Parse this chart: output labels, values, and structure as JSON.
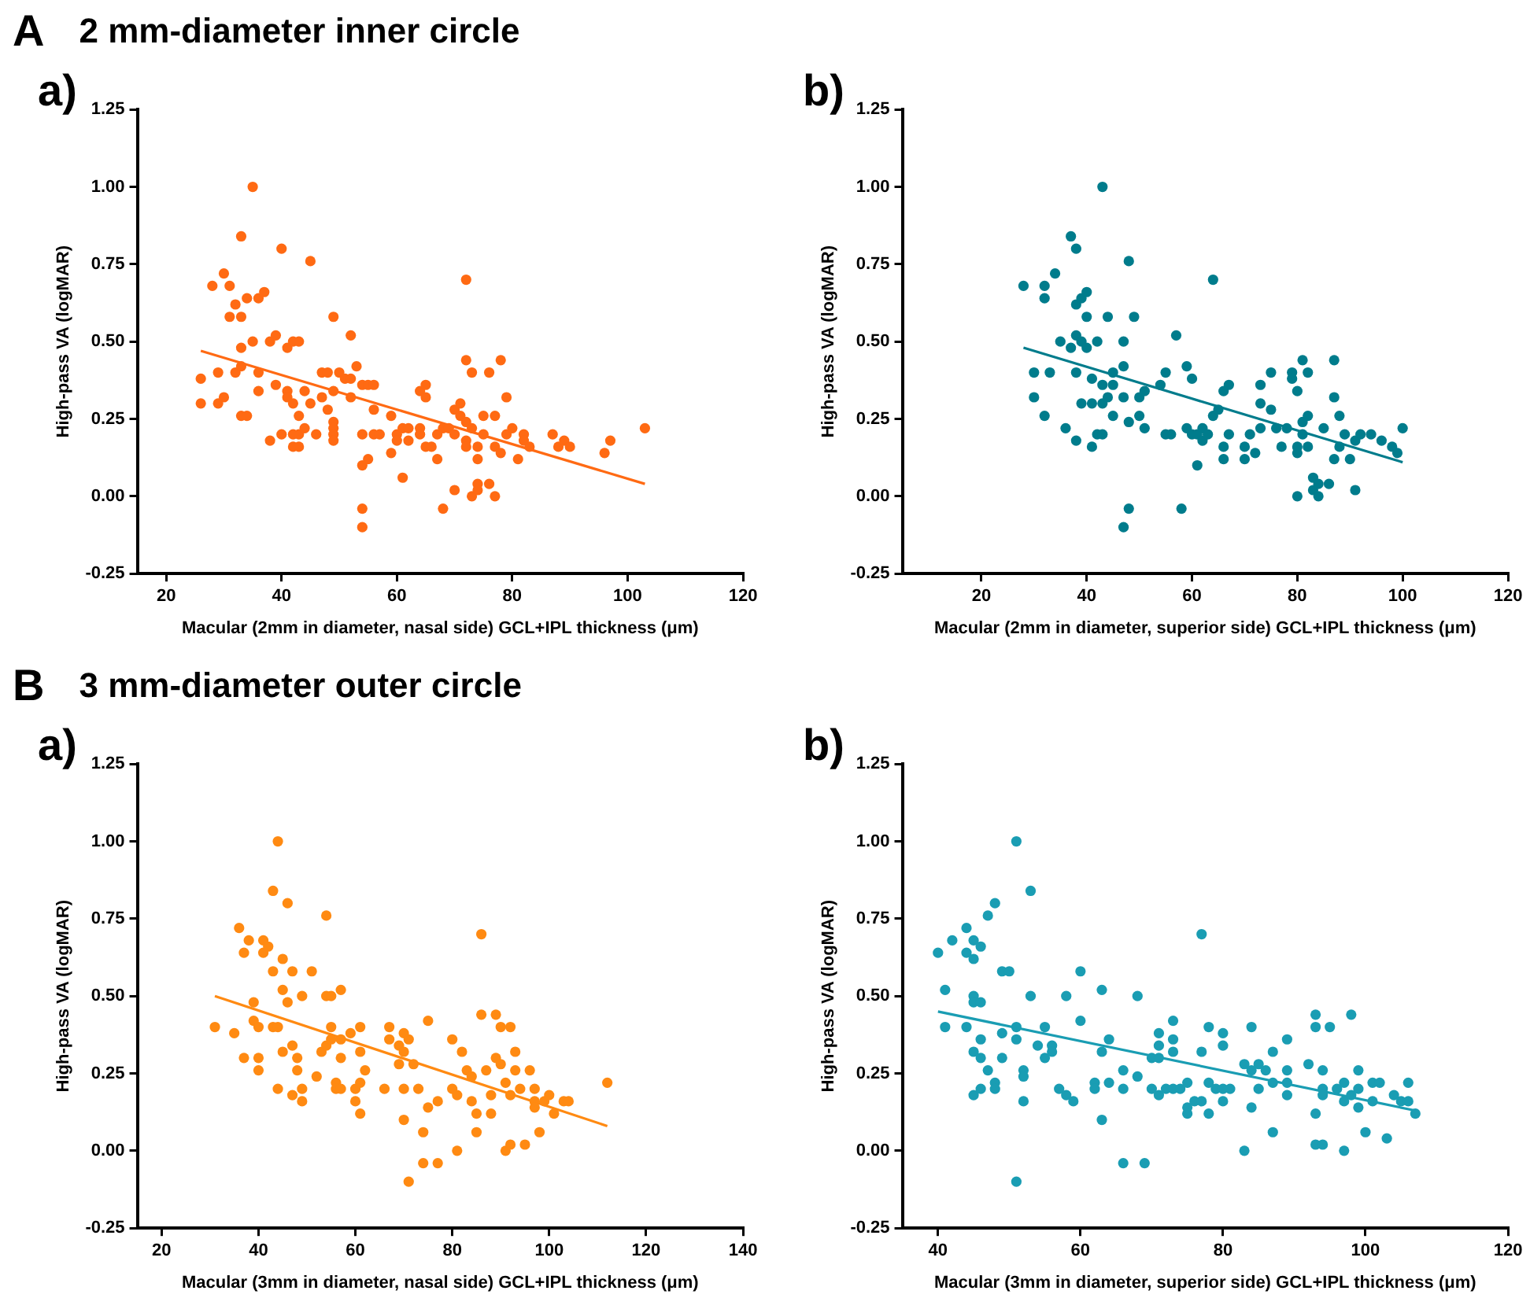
{
  "chart_data": [
    {
      "type": "scatter",
      "title": "a)",
      "annotations": [
        "A",
        "2 mm-diameter inner circle"
      ],
      "xlabel": "Macular (2mm in diameter, nasal side) GCL+IPL thickness (μm)",
      "ylabel": "High-pass VA (logMAR)",
      "xlim": [
        15,
        120
      ],
      "xticks": [
        20,
        40,
        60,
        80,
        100,
        120
      ],
      "ylim": [
        -0.25,
        1.25
      ],
      "yticks": [
        -0.25,
        {
          "value": 0,
          "label": "0.00"
        },
        0.25,
        {
          "value": 0.5,
          "label": "0.50"
        },
        0.75,
        {
          "value": 1,
          "label": "1.00"
        },
        1.25
      ],
      "grid": false,
      "legend": false,
      "marker": "circle",
      "series": [
        {
          "type": "scatter",
          "color": "#ff6a13",
          "x": [
            26,
            26,
            28,
            29,
            29,
            30,
            30,
            31,
            31,
            32,
            32,
            33,
            33,
            33,
            33,
            33,
            34,
            34,
            35,
            35,
            36,
            36,
            36,
            37,
            38,
            38,
            39,
            39,
            40,
            40,
            41,
            41,
            41,
            42,
            42,
            42,
            42,
            43,
            43,
            43,
            43,
            44,
            44,
            45,
            45,
            46,
            47,
            47,
            48,
            48,
            49,
            49,
            49,
            49,
            49,
            49,
            50,
            51,
            52,
            52,
            52,
            53,
            54,
            54,
            54,
            54,
            54,
            55,
            55,
            56,
            56,
            56,
            57,
            59,
            59,
            60,
            60,
            61,
            61,
            62,
            62,
            64,
            64,
            64,
            65,
            65,
            65,
            66,
            67,
            67,
            68,
            68,
            69,
            70,
            70,
            70,
            71,
            71,
            72,
            72,
            72,
            72,
            72,
            73,
            73,
            73,
            74,
            74,
            74,
            74,
            75,
            75,
            76,
            76,
            77,
            77,
            77,
            78,
            78,
            79,
            79,
            80,
            81,
            82,
            82,
            83,
            87,
            88,
            89,
            90,
            96,
            97,
            103
          ],
          "values": [
            0.38,
            0.3,
            0.68,
            0.4,
            0.3,
            0.32,
            0.72,
            0.68,
            0.58,
            0.62,
            0.4,
            0.84,
            0.58,
            0.48,
            0.42,
            0.26,
            0.64,
            0.26,
            1.0,
            0.5,
            0.64,
            0.4,
            0.34,
            0.66,
            0.5,
            0.18,
            0.52,
            0.36,
            0.8,
            0.2,
            0.48,
            0.34,
            0.32,
            0.5,
            0.3,
            0.2,
            0.16,
            0.5,
            0.26,
            0.2,
            0.16,
            0.34,
            0.22,
            0.76,
            0.3,
            0.2,
            0.4,
            0.32,
            0.4,
            0.28,
            0.58,
            0.34,
            0.24,
            0.22,
            0.2,
            0.18,
            0.4,
            0.38,
            0.52,
            0.38,
            0.32,
            0.42,
            0.36,
            0.2,
            0.1,
            -0.04,
            -0.1,
            0.36,
            0.12,
            0.36,
            0.28,
            0.2,
            0.2,
            0.26,
            0.14,
            0.2,
            0.18,
            0.22,
            0.06,
            0.22,
            0.18,
            0.22,
            0.2,
            0.34,
            0.36,
            0.32,
            0.16,
            0.16,
            0.2,
            0.12,
            -0.04,
            0.22,
            0.22,
            0.28,
            0.2,
            0.02,
            0.3,
            0.26,
            0.7,
            0.44,
            0.24,
            0.18,
            0.16,
            0.4,
            0.22,
            0.0,
            0.16,
            0.12,
            0.04,
            0.02,
            0.26,
            0.2,
            0.4,
            0.04,
            0.26,
            0.16,
            0.0,
            0.44,
            0.14,
            0.32,
            0.2,
            0.22,
            0.12,
            0.2,
            0.18,
            0.16,
            0.2,
            0.16,
            0.18,
            0.16,
            0.14,
            0.18,
            0.22
          ]
        },
        {
          "type": "line",
          "color": "#ff6a13",
          "marker": "none",
          "x": [
            26,
            103
          ],
          "values": [
            0.47,
            0.04
          ]
        }
      ]
    },
    {
      "type": "scatter",
      "title": "b)",
      "xlabel": "Macular (2mm in diameter, superior side) GCL+IPL thickness (μm)",
      "ylabel": "High-pass VA (logMAR)",
      "xlim": [
        5,
        120
      ],
      "xticks": [
        20,
        40,
        60,
        80,
        100,
        120
      ],
      "ylim": [
        -0.25,
        1.25
      ],
      "yticks": [
        -0.25,
        {
          "value": 0,
          "label": "0.00"
        },
        0.25,
        {
          "value": 0.5,
          "label": "0.50"
        },
        0.75,
        {
          "value": 1,
          "label": "1.00"
        },
        1.25
      ],
      "grid": false,
      "legend": false,
      "marker": "circle",
      "series": [
        {
          "type": "scatter",
          "color": "#007c8c",
          "x": [
            28,
            30,
            30,
            32,
            32,
            32,
            33,
            34,
            35,
            36,
            37,
            37,
            38,
            38,
            38,
            38,
            38,
            39,
            39,
            39,
            40,
            40,
            40,
            41,
            41,
            41,
            42,
            42,
            43,
            43,
            43,
            43,
            44,
            44,
            45,
            45,
            45,
            47,
            47,
            47,
            47,
            48,
            48,
            48,
            49,
            50,
            50,
            51,
            51,
            54,
            55,
            55,
            56,
            57,
            58,
            59,
            59,
            60,
            60,
            61,
            61,
            62,
            62,
            63,
            64,
            64,
            65,
            66,
            66,
            66,
            67,
            67,
            70,
            70,
            71,
            72,
            73,
            73,
            73,
            75,
            75,
            76,
            77,
            78,
            79,
            79,
            80,
            80,
            80,
            80,
            81,
            81,
            81,
            82,
            82,
            82,
            83,
            83,
            84,
            84,
            85,
            86,
            87,
            87,
            87,
            88,
            88,
            89,
            90,
            91,
            91,
            92,
            94,
            96,
            98,
            99,
            100
          ],
          "values": [
            0.68,
            0.4,
            0.32,
            0.68,
            0.64,
            0.26,
            0.4,
            0.72,
            0.5,
            0.22,
            0.84,
            0.48,
            0.8,
            0.62,
            0.52,
            0.4,
            0.18,
            0.64,
            0.5,
            0.3,
            0.66,
            0.58,
            0.48,
            0.38,
            0.3,
            0.16,
            0.5,
            0.2,
            1.0,
            0.36,
            0.3,
            0.2,
            0.58,
            0.32,
            0.4,
            0.36,
            0.26,
            0.5,
            0.42,
            0.32,
            -0.1,
            0.76,
            0.24,
            -0.04,
            0.58,
            0.32,
            0.26,
            0.34,
            0.22,
            0.36,
            0.4,
            0.2,
            0.2,
            0.52,
            -0.04,
            0.42,
            0.22,
            0.38,
            0.2,
            0.1,
            0.2,
            0.22,
            0.18,
            0.2,
            0.7,
            0.26,
            0.28,
            0.34,
            0.16,
            0.12,
            0.36,
            0.2,
            0.16,
            0.12,
            0.2,
            0.14,
            0.36,
            0.3,
            0.22,
            0.4,
            0.28,
            0.22,
            0.16,
            0.22,
            0.4,
            0.38,
            0.34,
            0.16,
            0.14,
            0.0,
            0.44,
            0.24,
            0.2,
            0.4,
            0.26,
            0.16,
            0.06,
            0.02,
            0.0,
            0.04,
            0.22,
            0.04,
            0.44,
            0.32,
            0.12,
            0.26,
            0.16,
            0.2,
            0.12,
            0.02,
            0.18,
            0.2,
            0.2,
            0.18,
            0.16,
            0.14,
            0.22
          ]
        },
        {
          "type": "line",
          "color": "#007c8c",
          "marker": "none",
          "x": [
            28,
            100
          ],
          "values": [
            0.48,
            0.11
          ]
        }
      ]
    },
    {
      "type": "scatter",
      "title": "a)",
      "annotations": [
        "B",
        "3 mm-diameter outer circle"
      ],
      "xlabel": "Macular (3mm in diameter, nasal side) GCL+IPL thickness (μm)",
      "ylabel": "High-pass VA (logMAR)",
      "xlim": [
        15,
        140
      ],
      "xticks": [
        20,
        40,
        60,
        80,
        100,
        120,
        140
      ],
      "ylim": [
        -0.25,
        1.25
      ],
      "yticks": [
        -0.25,
        {
          "value": 0,
          "label": "0.00"
        },
        0.25,
        {
          "value": 0.5,
          "label": "0.50"
        },
        0.75,
        {
          "value": 1,
          "label": "1.00"
        },
        1.25
      ],
      "grid": false,
      "legend": false,
      "marker": "circle",
      "series": [
        {
          "type": "scatter",
          "color": "#ff8a12",
          "x": [
            31,
            35,
            36,
            37,
            37,
            38,
            39,
            39,
            40,
            40,
            40,
            41,
            41,
            42,
            43,
            43,
            43,
            44,
            44,
            44,
            45,
            45,
            45,
            46,
            46,
            47,
            47,
            47,
            48,
            48,
            49,
            49,
            49,
            51,
            52,
            53,
            54,
            54,
            54,
            55,
            55,
            55,
            56,
            56,
            57,
            57,
            57,
            57,
            59,
            60,
            60,
            61,
            61,
            61,
            61,
            62,
            66,
            67,
            67,
            69,
            69,
            70,
            70,
            70,
            70,
            71,
            71,
            72,
            73,
            74,
            74,
            75,
            75,
            77,
            77,
            80,
            80,
            81,
            81,
            82,
            83,
            84,
            84,
            85,
            85,
            86,
            86,
            87,
            88,
            88,
            89,
            89,
            90,
            90,
            91,
            91,
            92,
            92,
            92,
            93,
            93,
            94,
            95,
            96,
            97,
            97,
            97,
            98,
            99,
            100,
            101,
            103,
            104,
            112
          ],
          "values": [
            0.4,
            0.38,
            0.72,
            0.64,
            0.3,
            0.68,
            0.48,
            0.42,
            0.4,
            0.3,
            0.26,
            0.68,
            0.64,
            0.66,
            0.84,
            0.58,
            0.4,
            1.0,
            0.4,
            0.2,
            0.62,
            0.52,
            0.32,
            0.8,
            0.48,
            0.58,
            0.34,
            0.18,
            0.3,
            0.26,
            0.5,
            0.2,
            0.16,
            0.58,
            0.24,
            0.32,
            0.76,
            0.5,
            0.34,
            0.5,
            0.4,
            0.36,
            0.22,
            0.2,
            0.2,
            0.52,
            0.36,
            0.3,
            0.38,
            0.2,
            0.16,
            0.4,
            0.32,
            0.22,
            0.12,
            0.26,
            0.2,
            0.4,
            0.36,
            0.34,
            0.28,
            0.32,
            0.38,
            0.2,
            0.1,
            0.36,
            -0.1,
            0.28,
            0.2,
            0.06,
            -0.04,
            0.42,
            0.14,
            -0.04,
            0.16,
            0.36,
            0.2,
            0.0,
            0.18,
            0.32,
            0.26,
            0.16,
            0.24,
            0.12,
            0.06,
            0.7,
            0.44,
            0.26,
            0.18,
            0.12,
            0.44,
            0.3,
            0.4,
            0.28,
            0.22,
            0.0,
            0.4,
            0.18,
            0.02,
            0.32,
            0.26,
            0.2,
            0.02,
            0.26,
            0.2,
            0.16,
            0.14,
            0.06,
            0.16,
            0.18,
            0.12,
            0.16,
            0.16,
            0.22
          ]
        },
        {
          "type": "line",
          "color": "#ff8a12",
          "marker": "none",
          "x": [
            31,
            112
          ],
          "values": [
            0.5,
            0.08
          ]
        }
      ]
    },
    {
      "type": "scatter",
      "title": "b)",
      "xlabel": "Macular (3mm in diameter, superior side) GCL+IPL thickness (μm)",
      "ylabel": "High-pass VA (logMAR)",
      "xlim": [
        35,
        120
      ],
      "xticks": [
        40,
        60,
        80,
        100,
        120
      ],
      "ylim": [
        -0.25,
        1.25
      ],
      "yticks": [
        -0.25,
        {
          "value": 0,
          "label": "0.00"
        },
        0.25,
        {
          "value": 0.5,
          "label": "0.50"
        },
        0.75,
        {
          "value": 1,
          "label": "1.00"
        },
        1.25
      ],
      "grid": false,
      "legend": false,
      "marker": "circle",
      "series": [
        {
          "type": "scatter",
          "color": "#1a9db3",
          "x": [
            40,
            41,
            41,
            42,
            44,
            44,
            44,
            45,
            45,
            45,
            45,
            45,
            45,
            46,
            46,
            46,
            46,
            46,
            47,
            47,
            48,
            48,
            48,
            49,
            49,
            49,
            50,
            51,
            51,
            51,
            51,
            52,
            52,
            52,
            53,
            53,
            54,
            55,
            55,
            56,
            56,
            57,
            58,
            58,
            59,
            60,
            60,
            62,
            62,
            63,
            63,
            63,
            64,
            64,
            66,
            66,
            66,
            68,
            68,
            69,
            70,
            70,
            71,
            71,
            71,
            71,
            72,
            73,
            73,
            73,
            73,
            74,
            75,
            75,
            75,
            76,
            77,
            77,
            77,
            78,
            78,
            78,
            79,
            80,
            80,
            80,
            80,
            81,
            83,
            83,
            84,
            84,
            84,
            85,
            85,
            86,
            87,
            87,
            87,
            89,
            89,
            89,
            89,
            92,
            93,
            93,
            93,
            93,
            94,
            94,
            94,
            94,
            95,
            96,
            97,
            97,
            97,
            98,
            98,
            99,
            99,
            99,
            100,
            101,
            101,
            102,
            103,
            104,
            105,
            106,
            106,
            107
          ],
          "values": [
            0.64,
            0.52,
            0.4,
            0.68,
            0.72,
            0.64,
            0.4,
            0.68,
            0.62,
            0.5,
            0.48,
            0.32,
            0.18,
            0.66,
            0.48,
            0.36,
            0.3,
            0.2,
            0.76,
            0.26,
            0.8,
            0.22,
            0.2,
            0.58,
            0.38,
            0.3,
            0.58,
            1.0,
            0.4,
            0.36,
            -0.1,
            0.26,
            0.24,
            0.16,
            0.84,
            0.5,
            0.34,
            0.4,
            0.3,
            0.34,
            0.32,
            0.2,
            0.5,
            0.18,
            0.16,
            0.58,
            0.42,
            0.22,
            0.2,
            0.52,
            0.32,
            0.1,
            0.36,
            0.22,
            0.26,
            0.2,
            -0.04,
            0.5,
            0.24,
            -0.04,
            0.3,
            0.2,
            0.3,
            0.34,
            0.38,
            0.18,
            0.2,
            0.32,
            0.36,
            0.42,
            0.2,
            0.2,
            0.22,
            0.14,
            0.12,
            0.16,
            0.7,
            0.32,
            0.16,
            0.4,
            0.22,
            0.12,
            0.2,
            0.38,
            0.34,
            0.2,
            0.16,
            0.2,
            0.28,
            0.0,
            0.4,
            0.26,
            0.14,
            0.28,
            0.2,
            0.26,
            0.22,
            0.06,
            0.32,
            0.26,
            0.36,
            0.22,
            0.18,
            0.28,
            0.44,
            0.4,
            0.12,
            0.02,
            0.26,
            0.2,
            0.18,
            0.02,
            0.4,
            0.2,
            0.22,
            0.16,
            0.0,
            0.44,
            0.18,
            0.26,
            0.2,
            0.14,
            0.06,
            0.22,
            0.16,
            0.22,
            0.04,
            0.18,
            0.16,
            0.22,
            0.16,
            0.12
          ]
        },
        {
          "type": "line",
          "color": "#1a9db3",
          "marker": "none",
          "x": [
            40,
            107
          ],
          "values": [
            0.45,
            0.13
          ]
        }
      ]
    }
  ]
}
